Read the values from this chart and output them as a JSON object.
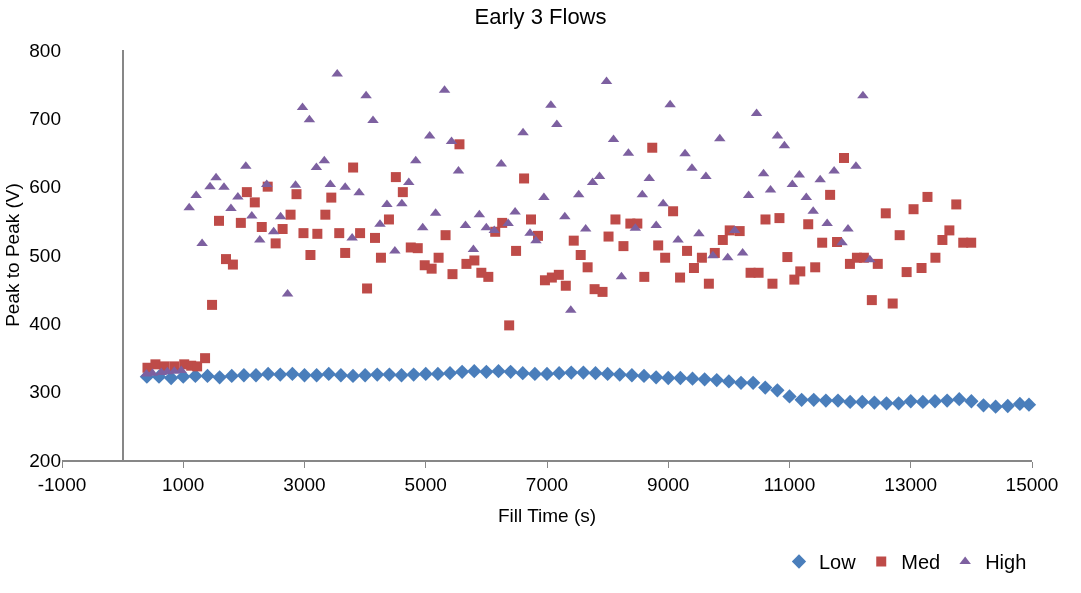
{
  "chart_data": {
    "type": "scatter",
    "title": "Early 3 Flows",
    "xlabel": "Fill Time (s)",
    "ylabel": "Peak to Peak (V)",
    "xlim": [
      -1000,
      15000
    ],
    "xticks": [
      -1000,
      1000,
      3000,
      5000,
      7000,
      9000,
      11000,
      13000,
      15000
    ],
    "ylim": [
      200,
      800
    ],
    "yticks": [
      200,
      300,
      400,
      500,
      600,
      700,
      800
    ],
    "grid": false,
    "legend": "bottom right",
    "series": [
      {
        "name": "Low",
        "color": "#4a7ebb",
        "marker": "diamond",
        "x": [
          400,
          600,
          800,
          1000,
          1200,
          1400,
          1600,
          1800,
          2000,
          2200,
          2400,
          2600,
          2800,
          3000,
          3200,
          3400,
          3600,
          3800,
          4000,
          4200,
          4400,
          4600,
          4800,
          5000,
          5200,
          5400,
          5600,
          5800,
          6000,
          6200,
          6400,
          6600,
          6800,
          7000,
          7200,
          7400,
          7600,
          7800,
          8000,
          8200,
          8400,
          8600,
          8800,
          9000,
          9200,
          9400,
          9600,
          9800,
          10000,
          10200,
          10400,
          10600,
          10800,
          11000,
          11200,
          11400,
          11600,
          11800,
          12000,
          12200,
          12400,
          12600,
          12800,
          13000,
          13200,
          13400,
          13600,
          13800,
          14000,
          14200,
          14400,
          14600,
          14800,
          14950
        ],
        "values": [
          322,
          322,
          320,
          322,
          323,
          323,
          321,
          323,
          324,
          324,
          326,
          325,
          326,
          324,
          324,
          326,
          324,
          323,
          324,
          325,
          325,
          324,
          325,
          326,
          326,
          327,
          329,
          330,
          329,
          330,
          329,
          327,
          326,
          326,
          327,
          328,
          328,
          327,
          326,
          325,
          324,
          323,
          321,
          320,
          320,
          319,
          318,
          317,
          315,
          313,
          313,
          306,
          302,
          293,
          288,
          288,
          287,
          287,
          285,
          285,
          284,
          283,
          283,
          286,
          285,
          286,
          287,
          289,
          286,
          280,
          278,
          279,
          282,
          281
        ]
      },
      {
        "name": "Med",
        "color": "#be4b48",
        "marker": "square",
        "x": [
          410,
          541,
          688,
          852,
          1016,
          1131,
          1229,
          1360,
          1475,
          1590,
          1705,
          1819,
          1950,
          2049,
          2180,
          2295,
          2393,
          2524,
          2639,
          2770,
          2868,
          2983,
          3098,
          3212,
          3344,
          3442,
          3573,
          3671,
          3802,
          3917,
          4032,
          4163,
          4261,
          4393,
          4507,
          4622,
          4753,
          4868,
          4983,
          5097,
          5212,
          5327,
          5441,
          5556,
          5671,
          5802,
          5917,
          6032,
          6146,
          6261,
          6376,
          6490,
          6622,
          6736,
          6851,
          6966,
          7080,
          7195,
          7310,
          7441,
          7556,
          7670,
          7785,
          7916,
          8015,
          8129,
          8261,
          8375,
          8490,
          8605,
          8736,
          8834,
          8949,
          9080,
          9195,
          9310,
          9424,
          9555,
          9670,
          9768,
          9900,
          10014,
          10178,
          10358,
          10490,
          10604,
          10719,
          10834,
          10965,
          11080,
          11178,
          11309,
          11424,
          11539,
          11670,
          11784,
          11899,
          11997,
          12112,
          12227,
          12358,
          12456,
          12588,
          12702,
          12817,
          12932,
          13046,
          13178,
          13276,
          13407,
          13522,
          13637,
          13751,
          13866,
          13997
        ],
        "values": [
          335,
          340,
          337,
          337,
          340,
          338,
          337,
          349,
          427,
          550,
          494,
          486,
          547,
          592,
          577,
          541,
          600,
          517,
          538,
          559,
          589,
          532,
          500,
          531,
          559,
          584,
          532,
          503,
          628,
          532,
          451,
          525,
          496,
          552,
          614,
          592,
          511,
          510,
          485,
          480,
          496,
          529,
          472,
          662,
          487,
          492,
          474,
          468,
          534,
          547,
          397,
          506,
          612,
          552,
          528,
          463,
          467,
          471,
          455,
          521,
          500,
          482,
          450,
          446,
          527,
          552,
          513,
          546,
          546,
          468,
          657,
          514,
          496,
          564,
          467,
          506,
          481,
          496,
          458,
          503,
          522,
          536,
          535,
          474,
          474,
          552,
          458,
          554,
          497,
          464,
          476,
          545,
          482,
          518,
          588,
          519,
          642,
          487,
          496,
          496,
          434,
          487,
          561,
          429,
          529,
          475,
          567,
          481,
          585,
          496,
          522,
          536,
          574,
          518,
          518
        ]
      },
      {
        "name": "High",
        "color": "#7d60a0",
        "marker": "triangle",
        "x": [
          393,
          492,
          639,
          738,
          852,
          967,
          1098,
          1213,
          1311,
          1442,
          1541,
          1672,
          1787,
          1901,
          2032,
          2131,
          2262,
          2377,
          2491,
          2606,
          2721,
          2852,
          2967,
          3081,
          3196,
          3327,
          3426,
          3540,
          3671,
          3786,
          3901,
          4016,
          4130,
          4245,
          4360,
          4491,
          4606,
          4720,
          4835,
          4950,
          5065,
          5163,
          5310,
          5425,
          5540,
          5655,
          5786,
          5884,
          5999,
          6130,
          6245,
          6359,
          6474,
          6605,
          6720,
          6818,
          6949,
          7064,
          7162,
          7294,
          7392,
          7523,
          7638,
          7752,
          7867,
          7982,
          8097,
          8228,
          8343,
          8457,
          8572,
          8687,
          8801,
          8916,
          9031,
          9162,
          9277,
          9391,
          9506,
          9621,
          9736,
          9850,
          9981,
          10096,
          10227,
          10326,
          10457,
          10572,
          10687,
          10801,
          10916,
          11047,
          11162,
          11277,
          11391,
          11506,
          11621,
          11736,
          11867,
          11965,
          12096,
          12211,
          12325
        ],
        "values": [
          326,
          327,
          328,
          329,
          330,
          331,
          569,
          587,
          517,
          600,
          613,
          599,
          568,
          585,
          630,
          557,
          522,
          603,
          534,
          556,
          443,
          602,
          716,
          698,
          628,
          638,
          603,
          765,
          599,
          525,
          591,
          733,
          697,
          545,
          574,
          506,
          575,
          606,
          638,
          540,
          674,
          561,
          741,
          666,
          623,
          543,
          508,
          559,
          540,
          536,
          633,
          546,
          563,
          679,
          532,
          521,
          584,
          719,
          691,
          556,
          419,
          588,
          538,
          606,
          615,
          754,
          669,
          468,
          649,
          539,
          588,
          612,
          543,
          575,
          720,
          522,
          648,
          627,
          531,
          615,
          499,
          670,
          496,
          536,
          503,
          587,
          707,
          619,
          595,
          674,
          660,
          603,
          617,
          584,
          564,
          610,
          546,
          623,
          518,
          538,
          630,
          733,
          493
        ]
      }
    ]
  }
}
